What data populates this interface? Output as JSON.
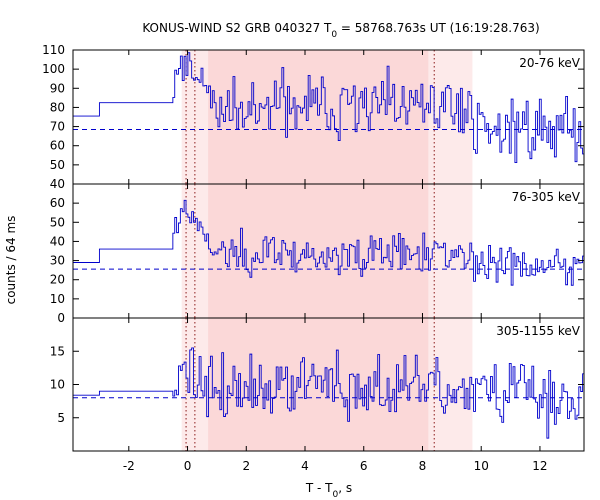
{
  "chart_data": {
    "type": "line",
    "title": "KONUS-WIND S2 GRB 040327 T",
    "title_sub": "0",
    "title_rest": " = 58768.763s UT (16:19:28.763)",
    "xlabel": "T - T",
    "xlabel_sub": "0",
    "xlabel_rest": ", s",
    "ylabel": "counts / 64 ms",
    "xlim": [
      -3.9,
      13.5
    ],
    "x_ticks": [
      -2,
      0,
      2,
      4,
      6,
      8,
      10,
      12
    ],
    "x_tick_labels": [
      "-2",
      "0",
      "2",
      "4",
      "6",
      "8",
      "10",
      "12"
    ],
    "bin_width_s": 0.064,
    "series_color": "#0000cc",
    "dotted_lines_x": [
      -0.05,
      0.25,
      8.4
    ],
    "shaded_regions": [
      {
        "x0": -0.2,
        "x1": 9.7,
        "color": "#fdeaea"
      },
      {
        "x0": 0.7,
        "x1": 8.2,
        "color": "#fbd8d8"
      }
    ],
    "panels": [
      {
        "label": "20-76 keV",
        "ylim": [
          40,
          110
        ],
        "yticks": [
          40,
          50,
          60,
          70,
          80,
          90,
          100,
          110
        ],
        "background": 68.5,
        "pre": [
          {
            "x0": -3.9,
            "x1": -3.0,
            "y": 75.5
          },
          {
            "x0": -3.0,
            "x1": -0.5,
            "y": 82.5
          }
        ],
        "peak": {
          "x": -0.05,
          "y": 103
        },
        "peak_width": 0.5,
        "mean": 80,
        "late_mean": 69,
        "noise": 8,
        "seed": 11
      },
      {
        "label": "76-305 keV",
        "ylim": [
          0,
          70
        ],
        "yticks": [
          0,
          10,
          20,
          30,
          40,
          50,
          60
        ],
        "background": 25.5,
        "pre": [
          {
            "x0": -3.9,
            "x1": -3.0,
            "y": 29
          },
          {
            "x0": -3.0,
            "x1": -0.5,
            "y": 36
          }
        ],
        "peak": {
          "x": -0.05,
          "y": 57
        },
        "peak_width": 0.45,
        "mean": 33,
        "late_mean": 27,
        "noise": 5,
        "seed": 23
      },
      {
        "label": "305-1155 keV",
        "ylim": [
          0,
          20
        ],
        "yticks": [
          5,
          10,
          15
        ],
        "background": 8.0,
        "pre": [
          {
            "x0": -3.9,
            "x1": -3.0,
            "y": 8.4
          },
          {
            "x0": -3.0,
            "x1": -0.5,
            "y": 9.0
          }
        ],
        "peak": {
          "x": -0.05,
          "y": 13
        },
        "peak_width": 0.3,
        "mean": 9.3,
        "late_mean": 8.6,
        "noise": 2.6,
        "seed": 37
      }
    ]
  }
}
